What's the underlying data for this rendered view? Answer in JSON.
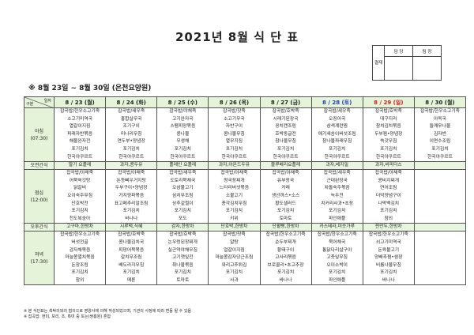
{
  "title": "2021년 8월 식 단 표",
  "approval": {
    "side_label": "결재",
    "columns": [
      "담 당",
      "팀 장"
    ]
  },
  "subtitle": "※ 8월 23일 ~ 8월 30일 (은천요양원)",
  "corner": {
    "top": "일자",
    "bottom": "구분"
  },
  "rows": {
    "breakfast": {
      "name": "아침",
      "time": "(07:30)"
    },
    "am_snack": {
      "name": "오전간식"
    },
    "lunch": {
      "name": "점심",
      "time": "(12:00)"
    },
    "pm_snack": {
      "name": "오후간식"
    },
    "dinner": {
      "name": "저녁",
      "time": "(17:30)"
    }
  },
  "colors": {
    "header_bg": "#e5f4d8",
    "saturday": "#2040c0",
    "sunday": "#d02020"
  },
  "days": [
    {
      "date": "8 / 23 (월)",
      "type": "weekday",
      "breakfast": [
        "잡곡밥/한우소고기죽",
        "소고기미역국",
        "열갈이지짐",
        "파래자반볶음",
        "해물완자전",
        "포기김치",
        "한국야쿠르트"
      ],
      "am_snack": "딸기 요플레",
      "lunch": [
        "잡곡밥/야채죽",
        "어묵쑥갓탕",
        "닭갈비",
        "오이숙주무침",
        "단호박전",
        "포기김치",
        "천도복숭아"
      ],
      "pm_snack": "고구마,한방차",
      "dinner": [
        "잡곡밥/한우소고기죽",
        "버섯전골",
        "감자채볶음",
        "마늘쫑멸치볶음",
        "돈장조림",
        "포기김치",
        "참외"
      ]
    },
    {
      "date": "8 / 24 (화)",
      "type": "weekday",
      "breakfast": [
        "잡곡밥/새우죽",
        "홍합살무국",
        "조기구이",
        "미나리무침",
        "연두부•양념장",
        "포기김치",
        "한국야쿠르트"
      ],
      "am_snack": "과자,콩두유",
      "lunch": [
        "잡곡밥/야채죽",
        "돈등뼈우거지탕",
        "두부구이•양념장",
        "가지양파볶음",
        "표고메추리알조림",
        "포기김치",
        "바나나"
      ],
      "pm_snack": "시루떡,식혜",
      "dinner": [
        "잡곡밥/호박죽",
        "콩나물김치국",
        "피망어묵볶음",
        "갈치무조림",
        "배도라지무침",
        "포기김치",
        "메론"
      ]
    },
    {
      "date": "8 / 25 (수)",
      "type": "weekday",
      "breakfast": [
        "잡곡밥/야채죽",
        "고기완자국",
        "스팸피망볶음",
        "콩나물",
        "무생채",
        "포기김치",
        "한국야쿠르트"
      ],
      "am_snack": "플레인 요플레",
      "lunch": [
        "잡곡밥/새우죽",
        "도토리묵채국",
        "오삼불고기",
        "삼치무조림",
        "상추겉절이",
        "포기김치",
        "포도"
      ],
      "pm_snack": "감자,한방차",
      "dinner": [
        "잡곡밥/호박죽",
        "논우렁된장찌개",
        "실곤약야채무침",
        "고기깻잎전",
        "취나물볶음",
        "포기김치",
        "토마토"
      ]
    },
    {
      "date": "8 / 26 (목)",
      "type": "weekday",
      "breakfast": [
        "잡곡밥/잣죽",
        "소고기무국",
        "자반구이",
        "콩나물무침",
        "열무지짐",
        "포기김치",
        "한국야쿠르트"
      ],
      "am_snack": "과자,아몬드두유",
      "lunch": [
        "잡곡밥/야채죽",
        "청국장찌개",
        "느타리버섯볶음",
        "소불고기",
        "총각김치무침",
        "포기김치",
        "키위"
      ],
      "pm_snack": "단호박,한방차",
      "dinner": [
        "잡곡밥/잣죽",
        "알탕",
        "얼갈이지짐",
        "마늘쫑감자당근조림",
        "꽈리고추튀김",
        "포기김치",
        "사과"
      ]
    },
    {
      "date": "8 / 27 (금)",
      "type": "weekday",
      "breakfast": [
        "잡곡밥/호박죽",
        "시래기된장국",
        "꽁치캔조림",
        "호박동글전",
        "참나물무침",
        "포기김치",
        "한국야쿠르트"
      ],
      "am_snack": "블루베리요플레",
      "lunch": [
        "잡곡밥/야채죽",
        "유부장국",
        "카레",
        "생선까스•소스",
        "황도샐러드",
        "포기김치",
        "토마토"
      ],
      "pm_snack": "단팥빵,한방차",
      "dinner": [
        "잡곡밥/한우소고기죽",
        "순두부찌개",
        "황태구이",
        "고사리볶음",
        "브로콜리•초고추장",
        "포기김치",
        "바나나"
      ]
    },
    {
      "date": "8 / 28 (토)",
      "type": "saturday",
      "breakfast": [
        "잡곡밥/새우죽",
        "오징어국",
        "삼색계란찜",
        "애기새송이버섯조림",
        "참나물파래무침",
        "포기김치",
        "한국야쿠르트"
      ],
      "am_snack": "과자,베지밀",
      "lunch": [
        "잡곡밥/새우죽",
        "근대된장국",
        "차돌숙주볶음",
        "녹두전",
        "치커리사과•초장",
        "포기김치",
        "파인애플"
      ],
      "pm_snack": "카스테라,미숫가루",
      "dinner": [
        "잡곡밥/한우소고기죽",
        "북어채국",
        "통닭다리살구이",
        "고춧잎무침",
        "오이소박이",
        "포기김치",
        "파인애플"
      ]
    },
    {
      "date": "8 / 29 (일)",
      "type": "sunday",
      "breakfast": [
        "잡곡밥/호박죽",
        "대구지리",
        "참치김치볶음",
        "두부찜•양념장",
        "쑥갓무침",
        "포기김치",
        "한국야쿠르트"
      ],
      "am_snack": "과자,비피더스",
      "lunch": [
        "잡곡밥/야채죽",
        "콩비지찌개",
        "연어조림",
        "더덕양념구이",
        "나박백김치",
        "포기김치",
        "참외"
      ],
      "pm_snack": "찐만두,한방차",
      "dinner": [
        "잡곡밥/한우소고기죽",
        "쇠고기미역국",
        "돈육불고기",
        "양배추찜•쌈장",
        "비름나물무침",
        "포기김치",
        "바나나"
      ]
    },
    {
      "date": "8 / 30 (월)",
      "type": "weekday",
      "breakfast": [
        "잡곡밥/한우소고기죽",
        "아욱국",
        "들깨무나물",
        "김자반",
        "이면수조림",
        "포기김치",
        "한국야쿠르트"
      ],
      "am_snack": "",
      "lunch": [],
      "pm_snack": "",
      "dinner": []
    }
  ],
  "notes": [
    "※ 본 식단표는 촉탁의와의 협의으로 영양사에 의해 작성되었으며, 기관의 사정에 따라 변동 될 수 있음",
    "※ 잡곡밥: 현미, 보리, 조, 흑미 중 또는(쌍흥원) 혼합"
  ]
}
